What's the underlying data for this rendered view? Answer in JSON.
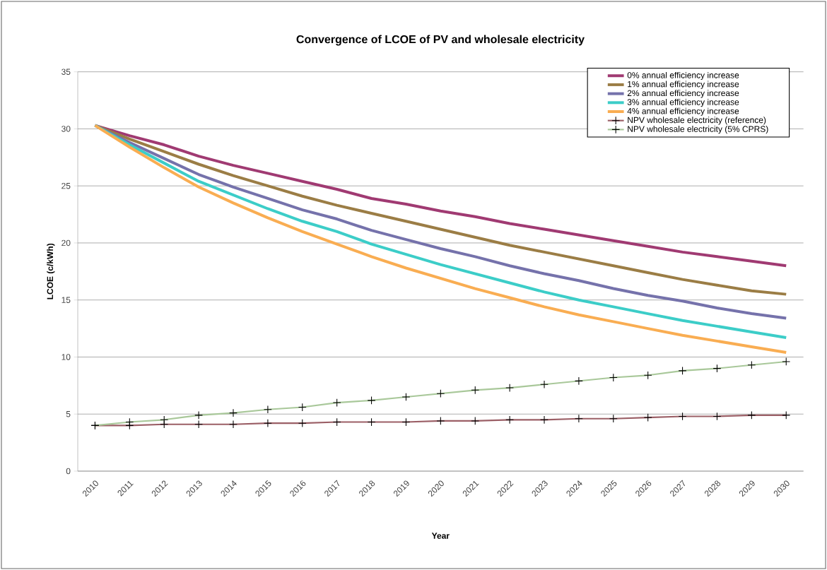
{
  "chart_data": {
    "type": "line",
    "title": "Convergence of LCOE of PV and wholesale electricity",
    "xlabel": "Year",
    "ylabel": "LCOE (c/kWh)",
    "categories": [
      "2010",
      "2011",
      "2012",
      "2013",
      "2014",
      "2015",
      "2016",
      "2017",
      "2018",
      "2019",
      "2020",
      "2021",
      "2022",
      "2023",
      "2024",
      "2025",
      "2026",
      "2027",
      "2028",
      "2029",
      "2030"
    ],
    "ylim": [
      0,
      35
    ],
    "yticks": [
      0,
      5,
      10,
      15,
      20,
      25,
      30,
      35
    ],
    "grid": "y",
    "legend": "top right",
    "line_style": "solid",
    "series": [
      {
        "name": "0% annual efficiency increase",
        "color": "#a03a72",
        "marker": "none",
        "values": [
          30.3,
          29.4,
          28.6,
          27.6,
          26.8,
          26.1,
          25.4,
          24.7,
          23.9,
          23.4,
          22.8,
          22.3,
          21.7,
          21.2,
          20.7,
          20.2,
          19.7,
          19.2,
          18.8,
          18.4,
          18.0
        ]
      },
      {
        "name": "1% annual efficiency increase",
        "color": "#9b7d45",
        "marker": "none",
        "values": [
          30.3,
          29.1,
          28.0,
          26.9,
          25.9,
          25.0,
          24.1,
          23.3,
          22.6,
          21.9,
          21.2,
          20.5,
          19.8,
          19.2,
          18.6,
          18.0,
          17.4,
          16.8,
          16.3,
          15.8,
          15.5
        ]
      },
      {
        "name": "2% annual efficiency increase",
        "color": "#7572ab",
        "marker": "none",
        "values": [
          30.3,
          28.8,
          27.4,
          26.0,
          24.9,
          23.9,
          22.9,
          22.1,
          21.1,
          20.3,
          19.5,
          18.8,
          18.0,
          17.3,
          16.7,
          16.0,
          15.4,
          14.9,
          14.3,
          13.8,
          13.4
        ]
      },
      {
        "name": "3% annual efficiency increase",
        "color": "#3ccdc8",
        "marker": "none",
        "values": [
          30.3,
          28.6,
          27.0,
          25.4,
          24.2,
          23.0,
          21.9,
          21.0,
          19.9,
          19.0,
          18.1,
          17.3,
          16.5,
          15.7,
          15.0,
          14.4,
          13.8,
          13.2,
          12.7,
          12.2,
          11.7
        ]
      },
      {
        "name": "4% annual efficiency increase",
        "color": "#f9ad52",
        "marker": "none",
        "values": [
          30.3,
          28.4,
          26.6,
          24.9,
          23.5,
          22.2,
          21.0,
          19.9,
          18.8,
          17.8,
          16.9,
          16.0,
          15.2,
          14.4,
          13.7,
          13.1,
          12.5,
          11.9,
          11.4,
          10.9,
          10.4
        ]
      },
      {
        "name": "NPV wholesale electricity (reference)",
        "color": "#9b5f66",
        "marker": "cross",
        "values": [
          4.0,
          4.0,
          4.1,
          4.1,
          4.1,
          4.2,
          4.2,
          4.3,
          4.3,
          4.3,
          4.4,
          4.4,
          4.5,
          4.5,
          4.6,
          4.6,
          4.7,
          4.8,
          4.8,
          4.9,
          4.9
        ]
      },
      {
        "name": "NPV wholesale electricity (5% CPRS)",
        "color": "#a9c89a",
        "marker": "cross",
        "values": [
          4.0,
          4.3,
          4.5,
          4.9,
          5.1,
          5.4,
          5.6,
          6.0,
          6.2,
          6.5,
          6.8,
          7.1,
          7.3,
          7.6,
          7.9,
          8.2,
          8.4,
          8.8,
          9.0,
          9.3,
          9.6
        ]
      }
    ]
  }
}
